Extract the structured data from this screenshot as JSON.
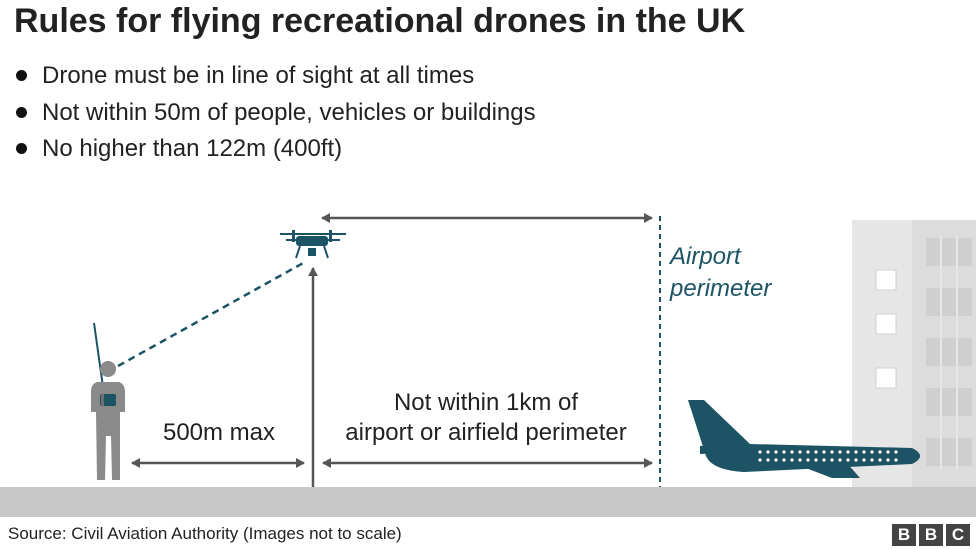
{
  "title": "Rules for flying recreational drones in the UK",
  "bullets": [
    "Drone must be in line of sight at all times",
    "Not within 50m of people, vehicles or buildings",
    "No higher than 122m (400ft)"
  ],
  "labels": {
    "airport_perimeter_line1": "Airport",
    "airport_perimeter_line2": "perimeter",
    "max_distance": "500m max",
    "airport_rule_line1": "Not within 1km of",
    "airport_rule_line2": "airport or airfield perimeter"
  },
  "source": "Source: Civil Aviation Authority (Images not to scale)",
  "logo": [
    "B",
    "B",
    "C"
  ],
  "colors": {
    "accent": "#1c5466",
    "ground": "#c8c8c8",
    "arrow": "#555555",
    "person": "#8a8a8a",
    "building": "#e6e6e6"
  }
}
